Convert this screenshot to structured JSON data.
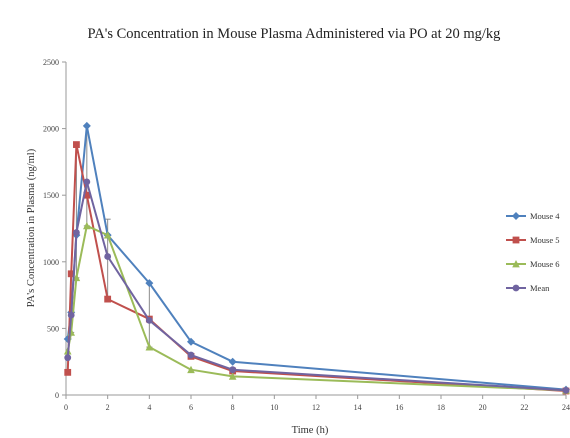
{
  "chart_data": {
    "type": "line",
    "title": "PA's Concentration in Mouse Plasma Administered via PO at 20 mg/kg",
    "xlabel": "Time (h)",
    "ylabel": "PA's Concentration in Plasma (ng/ml)",
    "xlim": [
      0,
      24
    ],
    "ylim": [
      0,
      2500
    ],
    "x_ticks": [
      0,
      2,
      4,
      6,
      8,
      10,
      12,
      14,
      16,
      18,
      20,
      22,
      24
    ],
    "x_tick_labels": [
      "0",
      "2",
      "4",
      "6",
      "8",
      "10",
      "12",
      "14",
      "16",
      "18",
      "20",
      "22",
      "24"
    ],
    "y_ticks": [
      0,
      500,
      1000,
      1500,
      2000,
      2500
    ],
    "y_tick_labels": [
      "0",
      "500",
      "1000",
      "1500",
      "2000",
      "2500"
    ],
    "grid": false,
    "legend_position": "right",
    "x": [
      0.083,
      0.25,
      0.5,
      1,
      2,
      4,
      6,
      8,
      24
    ],
    "series": [
      {
        "name": "Mouse 4",
        "color": "#4f81bd",
        "marker": "diamond",
        "values": [
          420,
          620,
          1200,
          2020,
          1200,
          840,
          400,
          250,
          40
        ]
      },
      {
        "name": "Mouse 5",
        "color": "#c0504d",
        "marker": "square",
        "values": [
          170,
          910,
          1880,
          1500,
          720,
          570,
          290,
          180,
          30
        ]
      },
      {
        "name": "Mouse 6",
        "color": "#9bbb59",
        "marker": "triangle",
        "values": [
          330,
          470,
          880,
          1270,
          1200,
          360,
          190,
          140,
          35
        ]
      },
      {
        "name": "Mean",
        "color": "#7064a0",
        "marker": "circle",
        "values": [
          280,
          600,
          1220,
          1600,
          1040,
          560,
          300,
          190,
          35
        ]
      }
    ],
    "error_bars": {
      "series": "Mean",
      "x": [
        0.25,
        0.5,
        1,
        2,
        4
      ],
      "upper": [
        920,
        1880,
        2020,
        1320,
        840
      ],
      "lower": [
        470,
        880,
        1270,
        720,
        360
      ]
    }
  }
}
